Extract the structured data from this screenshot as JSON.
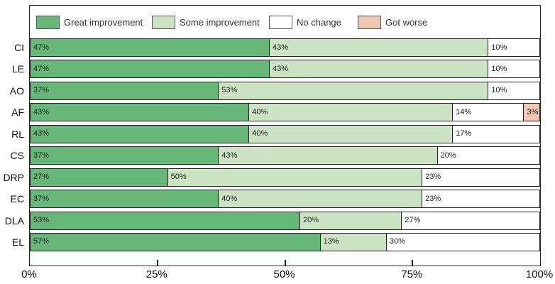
{
  "chart_data": {
    "type": "bar",
    "subtype": "stacked-horizontal",
    "title": "",
    "xlabel": "",
    "ylabel": "",
    "xlim": [
      0,
      100
    ],
    "x_ticks": [
      "0%",
      "25%",
      "50%",
      "75%",
      "100%"
    ],
    "x_tick_positions": [
      0,
      25,
      50,
      75,
      100
    ],
    "minor_tick_positions": [
      25,
      50,
      75
    ],
    "grid": false,
    "legend_position": "top",
    "categories": [
      "CI",
      "LE",
      "AO",
      "AF",
      "RL",
      "CS",
      "DRP",
      "EC",
      "DLA",
      "EL"
    ],
    "series": [
      {
        "name": "Great improvement",
        "color": "#67b878",
        "values": [
          47,
          47,
          37,
          43,
          43,
          37,
          27,
          37,
          53,
          57
        ]
      },
      {
        "name": "Some improvement",
        "color": "#cde4c4",
        "values": [
          43,
          43,
          53,
          40,
          40,
          43,
          50,
          40,
          20,
          13
        ]
      },
      {
        "name": "No change",
        "color": "#ffffff",
        "values": [
          10,
          10,
          10,
          14,
          17,
          20,
          23,
          23,
          27,
          30
        ]
      },
      {
        "name": "Got worse",
        "color": "#f0c7b0",
        "values": [
          0,
          0,
          0,
          3,
          0,
          0,
          0,
          0,
          0,
          0
        ]
      }
    ],
    "segment_label_suffix": "%",
    "colors": {
      "border": "#222222",
      "segment_text": "#222222",
      "axis_text": "#111111",
      "legend_text": "#333333"
    }
  }
}
